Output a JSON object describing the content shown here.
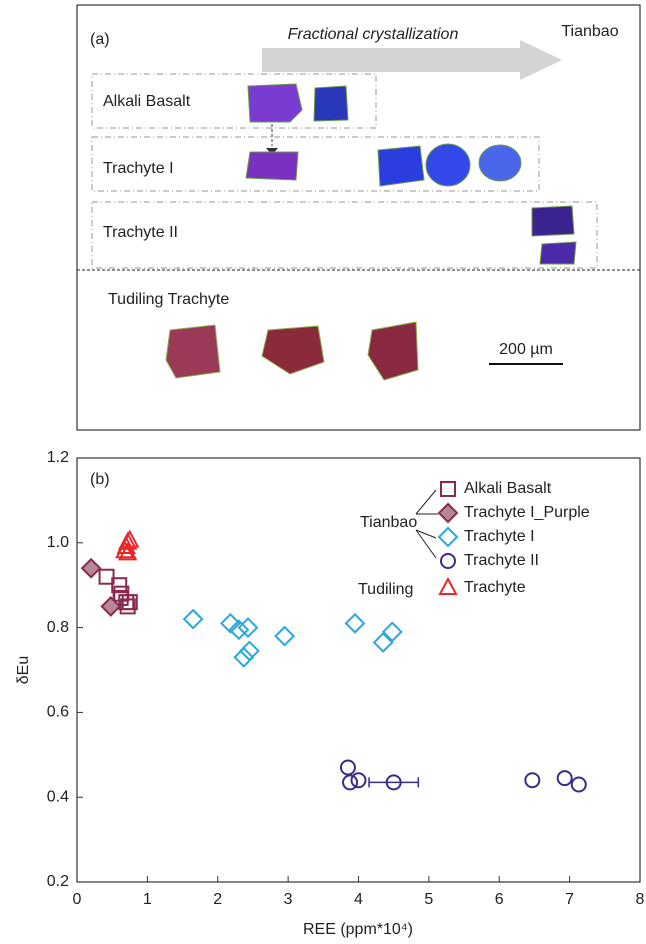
{
  "panel_a": {
    "label": "(a)",
    "arrow_label": "Fractional crystallization",
    "site": "Tianbao",
    "rows": [
      "Alkali Basalt",
      "Trachyte I",
      "Trachyte II"
    ],
    "lower_label": "Tudiling Trachyte",
    "scale_bar": "200 µm"
  },
  "chart_data": {
    "type": "scatter",
    "panel_label": "(b)",
    "xlabel": "REE (ppm*10⁴)",
    "ylabel": "δEu",
    "xlim": [
      0,
      8
    ],
    "xticks": [
      0,
      1,
      2,
      3,
      4,
      5,
      6,
      7,
      8
    ],
    "ylim": [
      0.2,
      1.2
    ],
    "yticks": [
      0.2,
      0.4,
      0.6,
      0.8,
      {
        "value": 1,
        "label": "1.0"
      },
      1.2
    ],
    "legend_groups": [
      "Tianbao",
      "Tudiling"
    ],
    "series": [
      {
        "name": "Alkali Basalt",
        "color": "#8b2a4e",
        "marker": "square",
        "filled": false,
        "x": [
          0.42,
          0.6,
          0.63,
          0.7,
          0.75,
          0.72,
          0.62
        ],
        "values": [
          0.92,
          0.9,
          0.88,
          0.86,
          0.86,
          0.85,
          0.87
        ]
      },
      {
        "name": "Trachyte I_Purple",
        "color": "#8b2a4e",
        "marker": "diamond",
        "filled": true,
        "x": [
          0.2,
          0.48
        ],
        "values": [
          0.94,
          0.85
        ]
      },
      {
        "name": "Trachyte I",
        "color": "#29a8e0",
        "marker": "diamond",
        "filled": false,
        "x": [
          1.65,
          2.18,
          2.3,
          2.43,
          2.37,
          2.45,
          2.95,
          3.95,
          4.35,
          4.48
        ],
        "values": [
          0.82,
          0.81,
          0.795,
          0.8,
          0.73,
          0.745,
          0.78,
          0.81,
          0.765,
          0.79
        ]
      },
      {
        "name": "Trachyte II",
        "color": "#3b2a8c",
        "marker": "circle",
        "filled": false,
        "x": [
          3.85,
          3.88,
          4.0,
          4.5,
          6.47,
          6.93,
          7.13
        ],
        "values": [
          0.47,
          0.435,
          0.44,
          0.435,
          0.44,
          0.445,
          0.43
        ],
        "x_err": [
          null,
          null,
          null,
          0.35,
          null,
          null,
          null
        ]
      },
      {
        "name": "Trachyte",
        "color": "#e8262a",
        "marker": "triangle",
        "filled": false,
        "x": [
          0.68,
          0.72,
          0.75,
          0.7,
          0.72
        ],
        "values": [
          0.98,
          1.0,
          1.005,
          0.99,
          0.975
        ]
      }
    ]
  }
}
